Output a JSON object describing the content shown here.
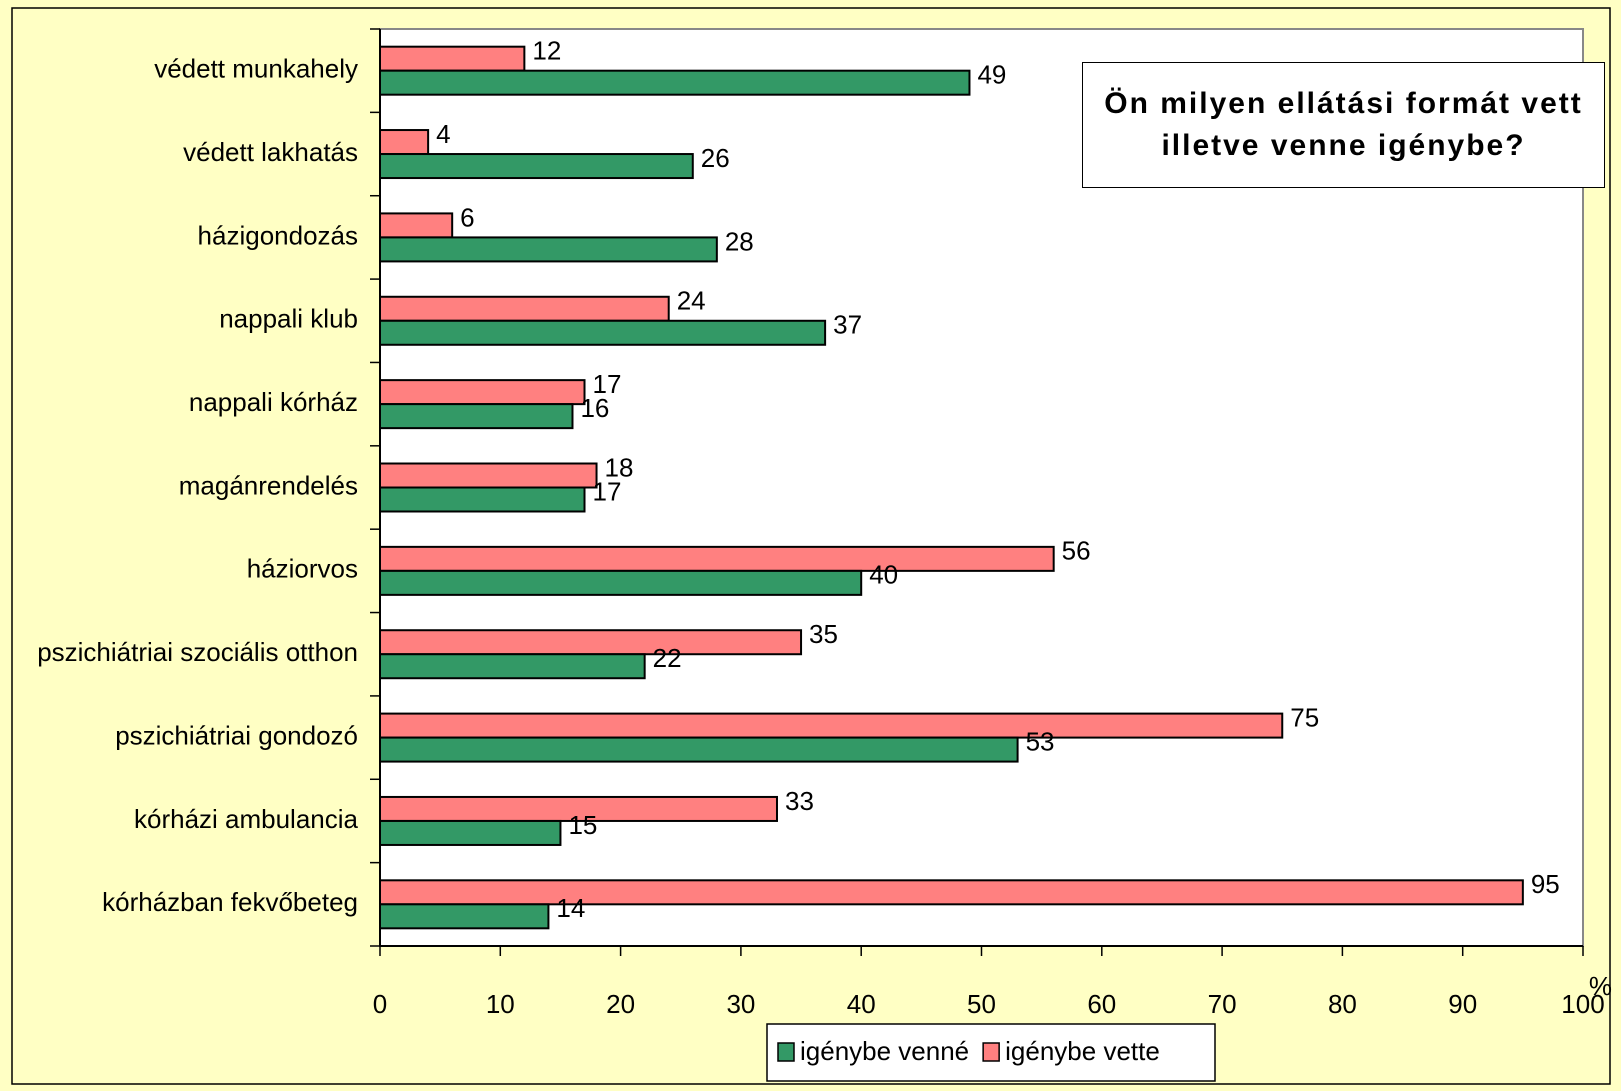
{
  "chart_data": {
    "type": "bar",
    "orientation": "horizontal",
    "title": "Ön milyen ellátási formát vett illetve venne igénybe?",
    "x_label": "%",
    "categories": [
      "védett munkahely",
      "védett lakhatás",
      "házigondozás",
      "nappali klub",
      "nappali kórház",
      "magánrendelés",
      "háziorvos",
      "pszichiátriai szociális otthon",
      "pszichiátriai gondozó",
      "kórházi ambulancia",
      "kórházban fekvőbeteg"
    ],
    "series": [
      {
        "name": "igénybe venné",
        "color": "#339966",
        "values": [
          49,
          26,
          28,
          37,
          16,
          17,
          40,
          22,
          53,
          15,
          14
        ]
      },
      {
        "name": "igénybe vette",
        "color": "#ff8080",
        "values": [
          12,
          4,
          6,
          24,
          17,
          18,
          56,
          35,
          75,
          33,
          95
        ]
      }
    ],
    "xlim": [
      0,
      100
    ],
    "xticks": [
      0,
      10,
      20,
      30,
      40,
      50,
      60,
      70,
      80,
      90,
      100
    ],
    "legend": "bottom"
  }
}
